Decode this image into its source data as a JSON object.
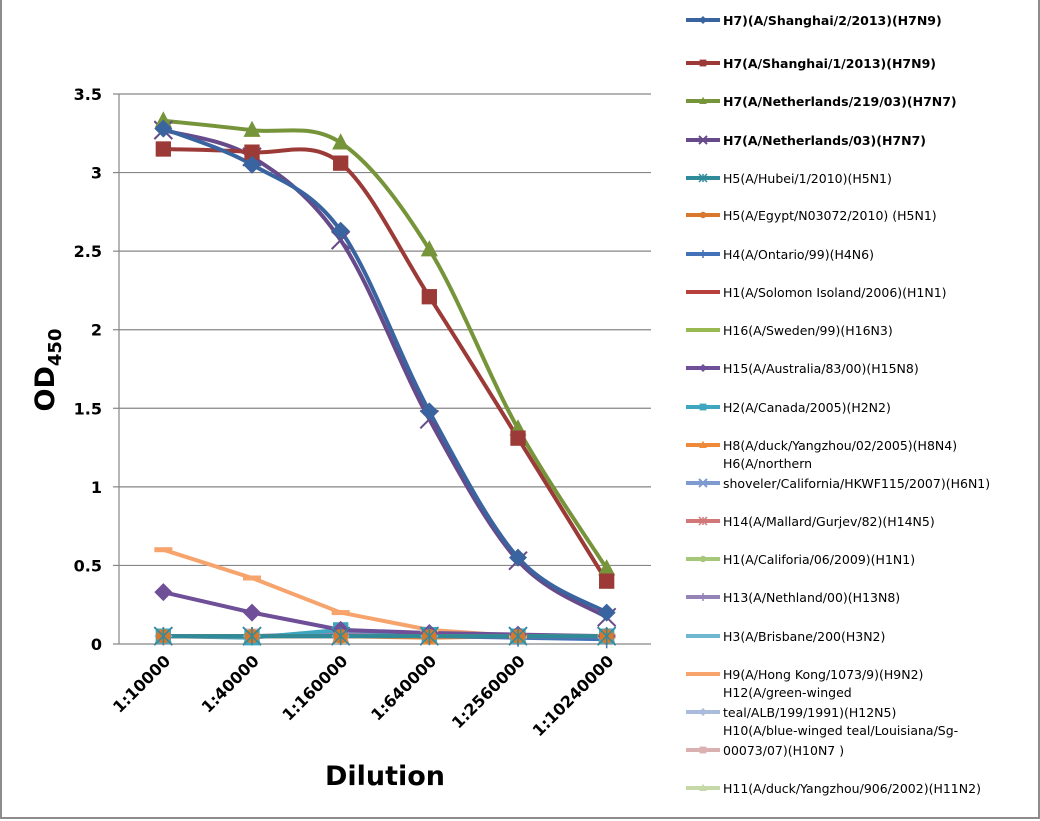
{
  "chart_data": {
    "type": "line",
    "title": "",
    "xlabel": "Dilution",
    "ylabel": "OD",
    "ylabel_subscript": "450",
    "ylim": [
      0,
      3.5
    ],
    "yticks": [
      "0",
      "0.5",
      "1",
      "1.5",
      "2",
      "2.5",
      "3",
      "3.5"
    ],
    "ytick_values": [
      0,
      0.5,
      1,
      1.5,
      2,
      2.5,
      3,
      3.5
    ],
    "grid": true,
    "legend_position": "right",
    "categories": [
      "1:10000",
      "1:40000",
      "1:160000",
      "1:640000",
      "1:2560000",
      "1:10240000"
    ],
    "series": [
      {
        "name": "H7)(A/Shanghai/2/2013)(H7N9)",
        "bold": true,
        "color": "#3a64a0",
        "marker": "diamond",
        "smooth": true,
        "values": [
          3.28,
          3.05,
          2.63,
          1.48,
          0.55,
          0.2
        ]
      },
      {
        "name": "H7(A/Shanghai/1/2013)(H7N9)",
        "bold": true,
        "color": "#9b3a37",
        "marker": "square",
        "smooth": true,
        "values": [
          3.15,
          3.13,
          3.06,
          2.21,
          1.31,
          0.4
        ]
      },
      {
        "name": "H7(A/Netherlands/219/03)(H7N7)",
        "bold": true,
        "color": "#76953a",
        "marker": "triangle",
        "smooth": true,
        "values": [
          3.33,
          3.27,
          3.19,
          2.51,
          1.37,
          0.48
        ]
      },
      {
        "name": "H7(A/Netherlands/03)(H7N7)",
        "bold": true,
        "color": "#664a8a",
        "marker": "x",
        "smooth": true,
        "values": [
          3.27,
          3.1,
          2.57,
          1.43,
          0.53,
          0.17
        ]
      },
      {
        "name": "H5(A/Hubei/1/2010)(H5N1)",
        "bold": false,
        "color": "#2f8b9a",
        "marker": "star",
        "smooth": false,
        "values": [
          0.05,
          0.05,
          0.05,
          0.05,
          0.05,
          0.05
        ]
      },
      {
        "name": "H5(A/Egypt/N03072/2010) (H5N1)",
        "bold": false,
        "color": "#d9782d",
        "marker": "circle",
        "smooth": false,
        "values": [
          0.05,
          0.05,
          0.05,
          0.05,
          0.05,
          0.05
        ]
      },
      {
        "name": "H4(A/Ontario/99)(H4N6)",
        "bold": false,
        "color": "#4472b8",
        "marker": "plus",
        "smooth": false,
        "values": [
          0.05,
          0.05,
          0.05,
          0.05,
          0.04,
          0.03
        ]
      },
      {
        "name": "H1(A/Solomon Isoland/2006)(H1N1)",
        "bold": false,
        "color": "#b8413d",
        "marker": "none",
        "smooth": false,
        "values": [
          0.05,
          0.05,
          0.05,
          0.05,
          0.05,
          0.05
        ]
      },
      {
        "name": "H16(A/Sweden/99)(H16N3)",
        "bold": false,
        "color": "#98b852",
        "marker": "none",
        "smooth": false,
        "values": [
          0.05,
          0.05,
          0.05,
          0.05,
          0.05,
          0.05
        ]
      },
      {
        "name": "H15(A/Australia/83/00)(H15N8)",
        "bold": false,
        "color": "#6e4f98",
        "marker": "diamond",
        "smooth": false,
        "values": [
          0.33,
          0.2,
          0.09,
          0.07,
          0.06,
          0.05
        ]
      },
      {
        "name": "H2(A/Canada/2005)(H2N2)",
        "bold": false,
        "color": "#3fa6c0",
        "marker": "square",
        "smooth": false,
        "values": [
          0.05,
          0.04,
          0.09,
          0.06,
          0.05,
          0.05
        ]
      },
      {
        "name": "H8(A/duck/Yangzhou/02/2005)(H8N4)",
        "bold": false,
        "color": "#ef8a3a",
        "marker": "triangle",
        "smooth": false,
        "values": [
          0.05,
          0.05,
          0.05,
          0.04,
          0.05,
          0.05
        ]
      },
      {
        "name": "H6(A/northern shoveler/California/HKWF115/2007)(H6N1)",
        "bold": false,
        "color": "#7d9bd0",
        "marker": "x",
        "smooth": false,
        "values": [
          0.05,
          0.05,
          0.05,
          0.05,
          0.05,
          0.05
        ]
      },
      {
        "name": "H14(A/Mallard/Gurjev/82)(H14N5)",
        "bold": false,
        "color": "#d27777",
        "marker": "star",
        "smooth": false,
        "values": [
          0.05,
          0.05,
          0.05,
          0.05,
          0.05,
          0.05
        ]
      },
      {
        "name": "H1(A/Califoria/06/2009)(H1N1)",
        "bold": false,
        "color": "#a6c779",
        "marker": "circle",
        "smooth": false,
        "values": [
          0.05,
          0.05,
          0.05,
          0.05,
          0.05,
          0.05
        ]
      },
      {
        "name": "H13(A/Nethland/00)(H13N8)",
        "bold": false,
        "color": "#9583b8",
        "marker": "plus",
        "smooth": false,
        "values": [
          0.05,
          0.05,
          0.07,
          0.06,
          0.05,
          0.05
        ]
      },
      {
        "name": "H3(A/Brisbane/200(H3N2)",
        "bold": false,
        "color": "#6fb8d0",
        "marker": "none",
        "smooth": false,
        "values": [
          0.05,
          0.05,
          0.05,
          0.05,
          0.05,
          0.05
        ]
      },
      {
        "name": "H9(A/Hong Kong/1073/9)(H9N2)",
        "bold": false,
        "color": "#f6a36c",
        "marker": "dash",
        "smooth": false,
        "values": [
          0.6,
          0.42,
          0.2,
          0.09,
          0.05,
          0.05
        ]
      },
      {
        "name": "H12(A/green-winged teal/ALB/199/1991)(H12N5)",
        "bold": false,
        "color": "#a9bcdc",
        "marker": "diamond",
        "smooth": false,
        "values": [
          0.05,
          0.05,
          0.05,
          0.05,
          0.05,
          0.05
        ]
      },
      {
        "name": "H10(A/blue-winged teal/Louisiana/Sg-00073/07)(H10N7 )",
        "bold": false,
        "color": "#dbb0b0",
        "marker": "square",
        "smooth": false,
        "values": [
          0.05,
          0.05,
          0.06,
          0.05,
          0.05,
          0.05
        ]
      },
      {
        "name": "H11(A/duck/Yangzhou/906/2002)(H11N2)",
        "bold": false,
        "color": "#c5d9a8",
        "marker": "triangle",
        "smooth": false,
        "values": [
          0.05,
          0.05,
          0.05,
          0.05,
          0.05,
          0.05
        ]
      }
    ],
    "legend_lines": [
      [
        "H7)(A/Shanghai/2/2013)(H7N9)"
      ],
      [
        "H7(A/Shanghai/1/2013)(H7N9)"
      ],
      [
        "H7(A/Netherlands/219/03)(H7N7)"
      ],
      [
        "H7(A/Netherlands/03)(H7N7)"
      ],
      [
        "H5(A/Hubei/1/2010)(H5N1)"
      ],
      [
        "H5(A/Egypt/N03072/2010) (H5N1)"
      ],
      [
        "H4(A/Ontario/99)(H4N6)"
      ],
      [
        "H1(A/Solomon Isoland/2006)(H1N1)"
      ],
      [
        "H16(A/Sweden/99)(H16N3)"
      ],
      [
        "H15(A/Australia/83/00)(H15N8)"
      ],
      [
        "H2(A/Canada/2005)(H2N2)"
      ],
      [
        "H8(A/duck/Yangzhou/02/2005)(H8N4)"
      ],
      [
        "H6(A/northern",
        "shoveler/California/HKWF115/2007)(H6N1)"
      ],
      [
        "H14(A/Mallard/Gurjev/82)(H14N5)"
      ],
      [
        "H1(A/Califoria/06/2009)(H1N1)"
      ],
      [
        "H13(A/Nethland/00)(H13N8)"
      ],
      [
        "H3(A/Brisbane/200(H3N2)"
      ],
      [
        "H9(A/Hong Kong/1073/9)(H9N2)"
      ],
      [
        "H12(A/green-winged",
        "teal/ALB/199/1991)(H12N5)"
      ],
      [
        "H10(A/blue-winged teal/Louisiana/Sg-",
        "00073/07)(H10N7 )"
      ],
      [
        "H11(A/duck/Yangzhou/906/2002)(H11N2)"
      ]
    ]
  }
}
